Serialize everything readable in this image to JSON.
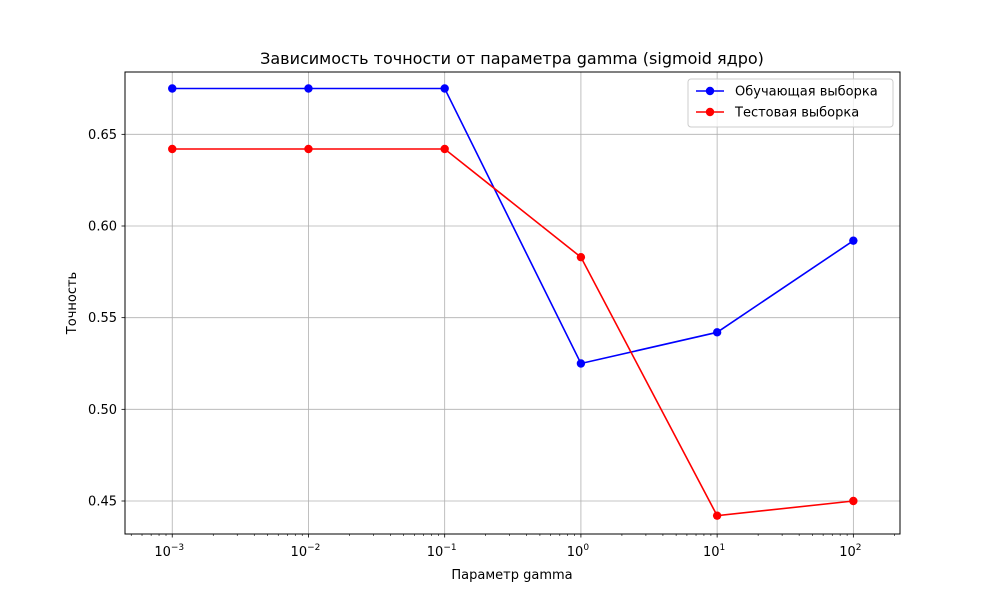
{
  "chart_data": {
    "type": "line",
    "title": "Зависимость точности от параметра gamma (sigmoid ядро)",
    "xlabel": "Параметр gamma",
    "ylabel": "Точность",
    "xscale": "log",
    "x": [
      0.001,
      0.01,
      0.1,
      1,
      10,
      100
    ],
    "x_tick_labels": [
      {
        "base": "10",
        "exp": "−3"
      },
      {
        "base": "10",
        "exp": "−2"
      },
      {
        "base": "10",
        "exp": "−1"
      },
      {
        "base": "10",
        "exp": "0"
      },
      {
        "base": "10",
        "exp": "1"
      },
      {
        "base": "10",
        "exp": "2"
      }
    ],
    "y_ticks": [
      0.45,
      0.5,
      0.55,
      0.6,
      0.65
    ],
    "y_tick_labels": [
      "0.45",
      "0.50",
      "0.55",
      "0.60",
      "0.65"
    ],
    "xlim": [
      0.00045,
      220
    ],
    "ylim": [
      0.432,
      0.684
    ],
    "grid": true,
    "legend_position": "top-right",
    "series": [
      {
        "name": "Обучающая выборка",
        "color": "#0000ff",
        "marker": "circle",
        "values": [
          0.675,
          0.675,
          0.675,
          0.525,
          0.542,
          0.592
        ]
      },
      {
        "name": "Тестовая выборка",
        "color": "#ff0000",
        "marker": "circle",
        "values": [
          0.642,
          0.642,
          0.642,
          0.583,
          0.442,
          0.45
        ]
      }
    ]
  }
}
